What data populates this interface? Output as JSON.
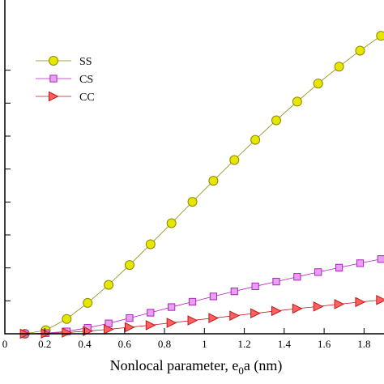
{
  "chart_data": {
    "type": "line",
    "title": "",
    "xlabel": "Nonlocal parameter, e",
    "xlabel_sub": "0",
    "xlabel_tail": "a (nm)",
    "ylabel": "",
    "xlim": [
      0,
      1.9
    ],
    "x_ticks": [
      0,
      0.2,
      0.4,
      0.6,
      0.8,
      1,
      1.2,
      1.4,
      1.6,
      1.8
    ],
    "x_tick_labels": [
      "0",
      "0.2",
      "0.4",
      "0.6",
      "0.8",
      "1",
      "1.2",
      "1.4",
      "1.6",
      "1.8"
    ],
    "ylim": [
      0,
      1
    ],
    "y_ticks": [
      0,
      0.1111,
      0.2222,
      0.3333,
      0.4444,
      0.5556,
      0.6667,
      0.7778,
      0.8889
    ],
    "x": [
      0.1,
      0.205,
      0.31,
      0.415,
      0.52,
      0.625,
      0.73,
      0.835,
      0.94,
      1.045,
      1.15,
      1.255,
      1.36,
      1.465,
      1.57,
      1.675,
      1.78,
      1.885
    ],
    "legend_position": "top-left",
    "series": [
      {
        "name": "SS",
        "marker": "circle",
        "color": "#e6e600",
        "edge": "#8a8a00",
        "values": [
          0.0,
          0.012,
          0.05,
          0.104,
          0.165,
          0.232,
          0.302,
          0.373,
          0.445,
          0.516,
          0.586,
          0.654,
          0.72,
          0.783,
          0.844,
          0.901,
          0.955,
          1.005
        ]
      },
      {
        "name": "CS",
        "marker": "square",
        "color": "#e8a0f0",
        "edge": "#b020c0",
        "values": [
          0.0,
          0.002,
          0.008,
          0.02,
          0.035,
          0.053,
          0.071,
          0.09,
          0.108,
          0.126,
          0.143,
          0.16,
          0.176,
          0.192,
          0.208,
          0.223,
          0.238,
          0.252
        ]
      },
      {
        "name": "CC",
        "marker": "triangle-right",
        "color": "#ff6060",
        "edge": "#c01818",
        "values": [
          0.0,
          0.001,
          0.004,
          0.009,
          0.015,
          0.022,
          0.029,
          0.037,
          0.045,
          0.053,
          0.061,
          0.069,
          0.077,
          0.085,
          0.092,
          0.1,
          0.107,
          0.114
        ]
      }
    ]
  }
}
